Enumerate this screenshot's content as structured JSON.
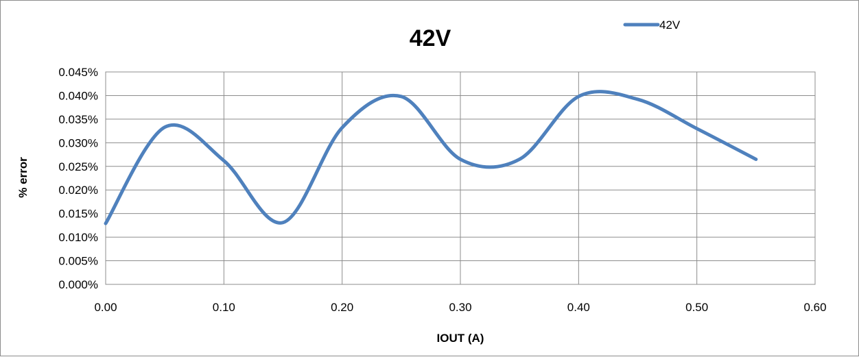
{
  "chart_data": {
    "type": "line",
    "title": "42V",
    "xlabel": "IOUT (A)",
    "ylabel": "% error",
    "xlim": [
      0,
      0.6
    ],
    "ylim": [
      0,
      0.045
    ],
    "x_ticks": [
      0,
      0.1,
      0.2,
      0.3,
      0.4,
      0.5,
      0.6
    ],
    "x_tick_labels": [
      "0.00",
      "0.10",
      "0.20",
      "0.30",
      "0.40",
      "0.50",
      "0.60"
    ],
    "y_ticks": [
      0,
      0.005,
      0.01,
      0.015,
      0.02,
      0.025,
      0.03,
      0.035,
      0.04,
      0.045
    ],
    "y_tick_labels": [
      "0.000%",
      "0.005%",
      "0.010%",
      "0.015%",
      "0.020%",
      "0.025%",
      "0.030%",
      "0.035%",
      "0.040%",
      "0.045%"
    ],
    "grid": true,
    "smooth": true,
    "legend_position": "top-right",
    "series": [
      {
        "name": "42V",
        "color": "#4f81bd",
        "x": [
          0.0,
          0.05,
          0.1,
          0.15,
          0.2,
          0.25,
          0.3,
          0.35,
          0.4,
          0.45,
          0.5,
          0.55
        ],
        "y": [
          0.0129,
          0.0333,
          0.0262,
          0.0131,
          0.0332,
          0.0398,
          0.0265,
          0.0265,
          0.0398,
          0.0392,
          0.033,
          0.0265
        ]
      }
    ]
  }
}
